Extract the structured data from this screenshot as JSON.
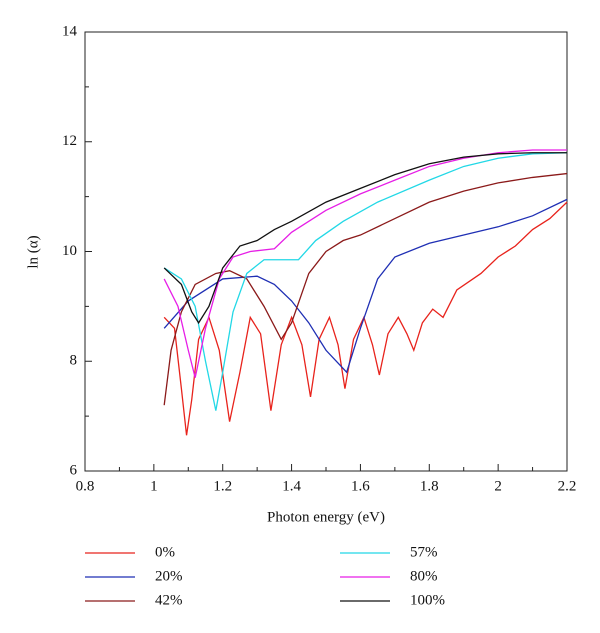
{
  "chart_data": {
    "type": "line",
    "xlabel": "Photon energy (eV)",
    "ylabel": "ln (α)",
    "xlim": [
      0.8,
      2.2
    ],
    "xticks": [
      0.8,
      1,
      1.2,
      1.4,
      1.6,
      1.8,
      2,
      2.2
    ],
    "xminorticks": [
      0.9,
      1.1,
      1.3,
      1.5,
      1.7,
      1.9,
      2.1
    ],
    "ylim": [
      6,
      14
    ],
    "yticks": [
      6,
      8,
      10,
      12,
      14
    ],
    "yminorticks": [
      7,
      9,
      11,
      13
    ],
    "series": [
      {
        "name": "0%",
        "color": "#e8231c",
        "x": [
          1.03,
          1.06,
          1.08,
          1.095,
          1.11,
          1.13,
          1.16,
          1.19,
          1.22,
          1.25,
          1.28,
          1.31,
          1.34,
          1.37,
          1.4,
          1.43,
          1.455,
          1.48,
          1.51,
          1.535,
          1.555,
          1.58,
          1.61,
          1.635,
          1.655,
          1.68,
          1.71,
          1.735,
          1.755,
          1.78,
          1.81,
          1.84,
          1.88,
          1.95,
          2.0,
          2.05,
          2.1,
          2.15,
          2.2
        ],
        "values": [
          8.8,
          8.6,
          7.5,
          6.65,
          7.3,
          8.4,
          8.8,
          8.2,
          6.9,
          7.8,
          8.8,
          8.5,
          7.1,
          8.3,
          8.8,
          8.3,
          7.35,
          8.4,
          8.8,
          8.3,
          7.5,
          8.4,
          8.8,
          8.3,
          7.75,
          8.5,
          8.8,
          8.5,
          8.2,
          8.7,
          8.95,
          8.8,
          9.3,
          9.6,
          9.9,
          10.1,
          10.4,
          10.6,
          10.9
        ]
      },
      {
        "name": "20%",
        "color": "#1f2fb4",
        "x": [
          1.03,
          1.1,
          1.2,
          1.3,
          1.35,
          1.4,
          1.45,
          1.5,
          1.56,
          1.6,
          1.65,
          1.7,
          1.8,
          1.9,
          2.0,
          2.1,
          2.2
        ],
        "values": [
          8.6,
          9.1,
          9.5,
          9.55,
          9.4,
          9.1,
          8.7,
          8.2,
          7.8,
          8.6,
          9.5,
          9.9,
          10.15,
          10.3,
          10.45,
          10.65,
          10.95
        ]
      },
      {
        "name": "42%",
        "color": "#8b1a1a",
        "x": [
          1.03,
          1.05,
          1.08,
          1.12,
          1.18,
          1.22,
          1.27,
          1.32,
          1.37,
          1.4,
          1.45,
          1.5,
          1.55,
          1.6,
          1.7,
          1.8,
          1.9,
          2.0,
          2.1,
          2.2
        ],
        "values": [
          7.2,
          8.2,
          8.9,
          9.4,
          9.6,
          9.65,
          9.5,
          9.0,
          8.4,
          8.7,
          9.6,
          10.0,
          10.2,
          10.3,
          10.6,
          10.9,
          11.1,
          11.25,
          11.35,
          11.42
        ]
      },
      {
        "name": "57%",
        "color": "#22d8e6",
        "x": [
          1.03,
          1.08,
          1.12,
          1.15,
          1.18,
          1.2,
          1.23,
          1.27,
          1.32,
          1.38,
          1.42,
          1.47,
          1.55,
          1.65,
          1.8,
          1.9,
          2.0,
          2.1,
          2.2
        ],
        "values": [
          9.7,
          9.5,
          9.0,
          8.0,
          7.1,
          7.8,
          8.9,
          9.6,
          9.85,
          9.85,
          9.85,
          10.2,
          10.55,
          10.9,
          11.3,
          11.55,
          11.7,
          11.78,
          11.8
        ]
      },
      {
        "name": "80%",
        "color": "#e61ee6",
        "x": [
          1.03,
          1.07,
          1.1,
          1.12,
          1.15,
          1.19,
          1.23,
          1.28,
          1.35,
          1.4,
          1.5,
          1.6,
          1.7,
          1.8,
          1.9,
          2.0,
          2.1,
          2.2
        ],
        "values": [
          9.5,
          9.0,
          8.2,
          7.7,
          8.6,
          9.5,
          9.9,
          10.0,
          10.05,
          10.35,
          10.75,
          11.05,
          11.3,
          11.55,
          11.7,
          11.8,
          11.85,
          11.85
        ]
      },
      {
        "name": "100%",
        "color": "#111111",
        "x": [
          1.03,
          1.08,
          1.11,
          1.13,
          1.16,
          1.2,
          1.25,
          1.3,
          1.35,
          1.4,
          1.5,
          1.6,
          1.7,
          1.8,
          1.9,
          2.0,
          2.1,
          2.2
        ],
        "values": [
          9.7,
          9.4,
          8.9,
          8.7,
          9.0,
          9.7,
          10.1,
          10.2,
          10.4,
          10.55,
          10.9,
          11.15,
          11.4,
          11.6,
          11.72,
          11.78,
          11.8,
          11.8
        ]
      }
    ]
  }
}
